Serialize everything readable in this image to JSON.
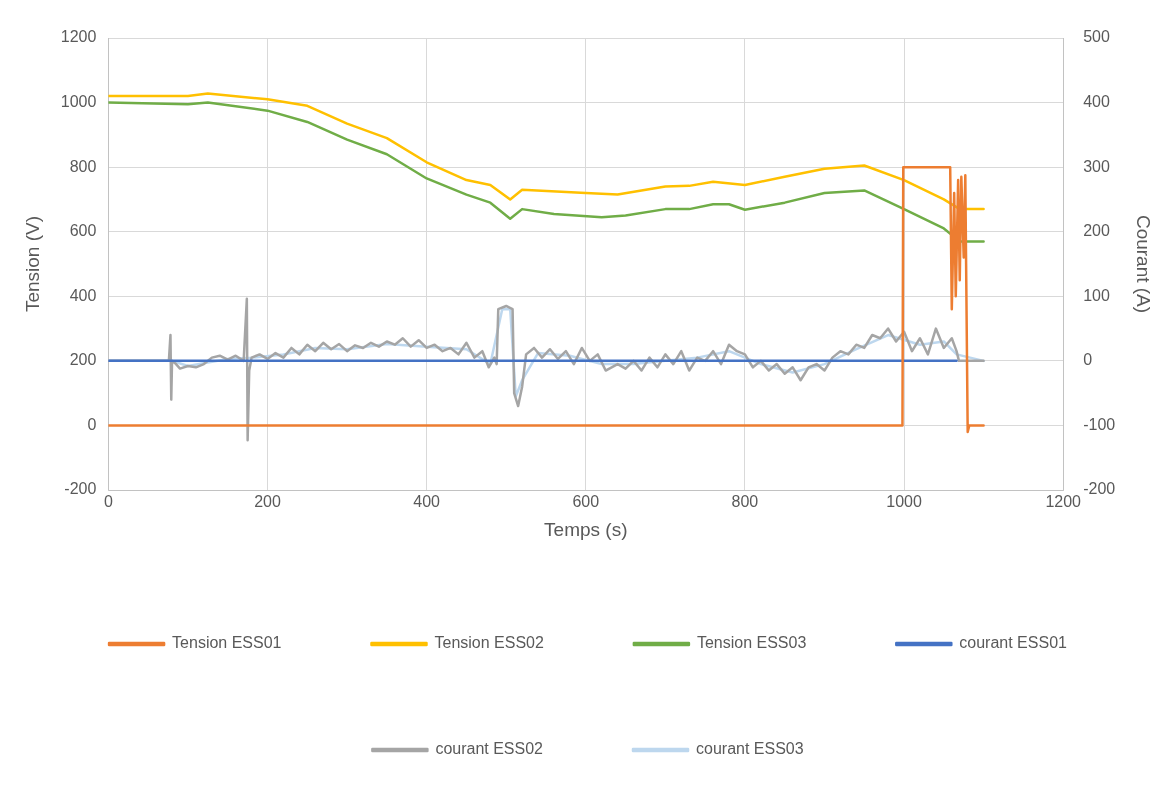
{
  "chart_data": {
    "type": "line",
    "xlabel": "Temps (s)",
    "ylabel": "Tension (V)",
    "y2label": "Courant (A)",
    "xlim": [
      0,
      1200
    ],
    "xticks": [
      0,
      200,
      400,
      600,
      800,
      1000,
      1200
    ],
    "ylim": [
      -200,
      1200
    ],
    "yticks": [
      -200,
      0,
      200,
      400,
      600,
      800,
      1000,
      1200
    ],
    "y2lim": [
      -200,
      500
    ],
    "y2ticks": [
      -200,
      -100,
      0,
      100,
      200,
      300,
      400,
      500
    ],
    "grid": true,
    "legend": "bottom",
    "series": [
      {
        "name": "Tension ESS01",
        "color": "#ed7d31",
        "x": [
          0,
          998,
          999,
          1058,
          1060,
          1063,
          1065,
          1068,
          1070,
          1072,
          1075,
          1077,
          1078,
          1080,
          1082,
          1100
        ],
        "values": [
          0,
          0,
          800,
          800,
          360,
          720,
          400,
          760,
          450,
          770,
          520,
          775,
          500,
          -20,
          0,
          0
        ]
      },
      {
        "name": "Tension ESS02",
        "color": "#ffc000",
        "x": [
          0,
          100,
          125,
          200,
          250,
          300,
          350,
          400,
          450,
          480,
          505,
          520,
          600,
          640,
          700,
          730,
          760,
          800,
          850,
          900,
          950,
          1000,
          1050,
          1070,
          1100
        ],
        "values": [
          1020,
          1020,
          1028,
          1010,
          990,
          935,
          890,
          815,
          760,
          745,
          700,
          730,
          720,
          715,
          740,
          742,
          755,
          745,
          770,
          795,
          805,
          760,
          700,
          670,
          670
        ]
      },
      {
        "name": "Tension ESS03",
        "color": "#70ad47",
        "x": [
          0,
          100,
          125,
          200,
          250,
          300,
          350,
          400,
          450,
          480,
          505,
          520,
          560,
          620,
          650,
          700,
          730,
          760,
          780,
          800,
          850,
          900,
          950,
          1000,
          1050,
          1070,
          1100
        ],
        "values": [
          1000,
          995,
          1000,
          975,
          940,
          885,
          840,
          765,
          715,
          690,
          640,
          670,
          655,
          645,
          650,
          670,
          670,
          685,
          685,
          668,
          690,
          720,
          728,
          670,
          610,
          570,
          570
        ]
      },
      {
        "name": "courant ESS01",
        "color": "#4472c4",
        "axis": "y2",
        "x": [
          0,
          1066
        ],
        "values": [
          0,
          0
        ]
      },
      {
        "name": "courant ESS02",
        "color": "#a5a5a5",
        "axis": "y2",
        "x": [
          0,
          76,
          78,
          79,
          80,
          85,
          90,
          100,
          110,
          120,
          130,
          140,
          150,
          160,
          170,
          174,
          175,
          177,
          180,
          190,
          200,
          210,
          220,
          230,
          240,
          250,
          260,
          270,
          280,
          290,
          300,
          310,
          320,
          330,
          340,
          350,
          360,
          370,
          380,
          390,
          400,
          410,
          420,
          430,
          440,
          450,
          460,
          470,
          478,
          485,
          488,
          490,
          500,
          508,
          510,
          515,
          520,
          525,
          535,
          545,
          555,
          565,
          575,
          585,
          595,
          605,
          615,
          625,
          640,
          650,
          660,
          670,
          680,
          690,
          700,
          710,
          720,
          730,
          740,
          750,
          760,
          770,
          780,
          790,
          800,
          810,
          820,
          830,
          840,
          850,
          860,
          870,
          880,
          890,
          900,
          910,
          920,
          930,
          940,
          950,
          960,
          970,
          980,
          990,
          1000,
          1010,
          1020,
          1030,
          1040,
          1050,
          1060,
          1066,
          1069,
          1100
        ],
        "values": [
          0,
          0,
          40,
          -60,
          0,
          -5,
          -12,
          -8,
          -10,
          -5,
          5,
          8,
          2,
          8,
          0,
          96,
          -123,
          -15,
          5,
          10,
          3,
          12,
          5,
          20,
          10,
          25,
          15,
          28,
          18,
          26,
          15,
          24,
          20,
          28,
          22,
          30,
          25,
          35,
          22,
          32,
          20,
          25,
          15,
          20,
          10,
          28,
          5,
          15,
          -10,
          5,
          -5,
          80,
          85,
          80,
          -50,
          -70,
          -40,
          10,
          20,
          5,
          18,
          3,
          15,
          -5,
          20,
          0,
          10,
          -15,
          -5,
          -12,
          0,
          -15,
          5,
          -10,
          10,
          -5,
          15,
          -15,
          5,
          0,
          15,
          -5,
          25,
          15,
          10,
          -10,
          0,
          -15,
          -5,
          -20,
          -10,
          -30,
          -10,
          -5,
          -15,
          5,
          15,
          10,
          25,
          20,
          40,
          35,
          50,
          30,
          45,
          15,
          35,
          10,
          50,
          20,
          35,
          15,
          0,
          0
        ]
      },
      {
        "name": "courant ESS03",
        "color": "#bdd7ee",
        "axis": "y2",
        "x": [
          0,
          80,
          100,
          150,
          180,
          220,
          260,
          300,
          350,
          400,
          450,
          480,
          495,
          505,
          512,
          520,
          540,
          580,
          620,
          660,
          700,
          740,
          780,
          820,
          860,
          900,
          940,
          980,
          1020,
          1050,
          1066,
          1100
        ],
        "values": [
          0,
          0,
          -8,
          3,
          5,
          10,
          20,
          18,
          26,
          22,
          18,
          -5,
          80,
          80,
          -55,
          -30,
          12,
          8,
          -5,
          -5,
          0,
          5,
          15,
          -5,
          -18,
          -5,
          18,
          40,
          25,
          30,
          10,
          0
        ]
      }
    ]
  }
}
